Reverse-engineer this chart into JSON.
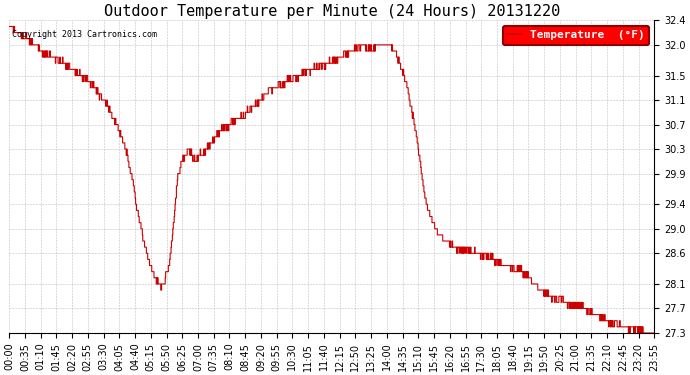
{
  "title": "Outdoor Temperature per Minute (24 Hours) 20131220",
  "copyright": "Copyright 2013 Cartronics.com",
  "legend_label": "Temperature  (°F)",
  "line_color": "#cc0000",
  "background_color": "#ffffff",
  "plot_background": "#ffffff",
  "grid_color": "#b0b0b0",
  "ylim": [
    27.3,
    32.4
  ],
  "yticks": [
    27.3,
    27.7,
    28.1,
    28.6,
    29.0,
    29.4,
    29.9,
    30.3,
    30.7,
    31.1,
    31.5,
    32.0,
    32.4
  ],
  "xtick_labels": [
    "00:00",
    "00:35",
    "01:10",
    "01:45",
    "02:20",
    "02:55",
    "03:30",
    "04:05",
    "04:40",
    "05:15",
    "05:50",
    "06:25",
    "07:00",
    "07:35",
    "08:10",
    "08:45",
    "09:20",
    "09:55",
    "10:30",
    "11:05",
    "11:40",
    "12:15",
    "12:50",
    "13:25",
    "14:00",
    "14:35",
    "15:10",
    "15:45",
    "16:20",
    "16:55",
    "17:30",
    "18:05",
    "18:40",
    "19:15",
    "19:50",
    "20:25",
    "21:00",
    "21:35",
    "22:10",
    "22:45",
    "23:20",
    "23:55"
  ],
  "control_points": [
    [
      0,
      32.3
    ],
    [
      20,
      32.2
    ],
    [
      40,
      32.1
    ],
    [
      55,
      32.0
    ],
    [
      70,
      31.9
    ],
    [
      85,
      31.85
    ],
    [
      100,
      31.8
    ],
    [
      120,
      31.7
    ],
    [
      140,
      31.6
    ],
    [
      160,
      31.5
    ],
    [
      185,
      31.35
    ],
    [
      200,
      31.2
    ],
    [
      220,
      31.0
    ],
    [
      240,
      30.7
    ],
    [
      260,
      30.3
    ],
    [
      275,
      29.8
    ],
    [
      285,
      29.3
    ],
    [
      300,
      28.8
    ],
    [
      315,
      28.4
    ],
    [
      325,
      28.2
    ],
    [
      332,
      28.1
    ],
    [
      338,
      28.05
    ],
    [
      345,
      28.1
    ],
    [
      358,
      28.5
    ],
    [
      368,
      29.2
    ],
    [
      375,
      29.8
    ],
    [
      385,
      30.1
    ],
    [
      392,
      30.2
    ],
    [
      398,
      30.3
    ],
    [
      405,
      30.25
    ],
    [
      412,
      30.15
    ],
    [
      418,
      30.1
    ],
    [
      425,
      30.2
    ],
    [
      432,
      30.25
    ],
    [
      440,
      30.3
    ],
    [
      450,
      30.4
    ],
    [
      460,
      30.5
    ],
    [
      470,
      30.6
    ],
    [
      485,
      30.65
    ],
    [
      500,
      30.75
    ],
    [
      515,
      30.8
    ],
    [
      530,
      30.9
    ],
    [
      545,
      31.0
    ],
    [
      560,
      31.1
    ],
    [
      575,
      31.2
    ],
    [
      590,
      31.3
    ],
    [
      605,
      31.35
    ],
    [
      618,
      31.4
    ],
    [
      630,
      31.45
    ],
    [
      645,
      31.5
    ],
    [
      658,
      31.55
    ],
    [
      672,
      31.6
    ],
    [
      690,
      31.65
    ],
    [
      710,
      31.7
    ],
    [
      725,
      31.75
    ],
    [
      740,
      31.8
    ],
    [
      755,
      31.85
    ],
    [
      768,
      31.9
    ],
    [
      778,
      31.95
    ],
    [
      788,
      32.0
    ],
    [
      800,
      31.95
    ],
    [
      810,
      31.9
    ],
    [
      818,
      32.0
    ],
    [
      828,
      32.0
    ],
    [
      838,
      32.0
    ],
    [
      848,
      32.0
    ],
    [
      858,
      31.9
    ],
    [
      865,
      31.8
    ],
    [
      872,
      31.7
    ],
    [
      880,
      31.5
    ],
    [
      888,
      31.3
    ],
    [
      896,
      31.0
    ],
    [
      904,
      30.7
    ],
    [
      912,
      30.3
    ],
    [
      920,
      29.9
    ],
    [
      928,
      29.5
    ],
    [
      936,
      29.3
    ],
    [
      944,
      29.1
    ],
    [
      952,
      29.0
    ],
    [
      960,
      28.9
    ],
    [
      975,
      28.8
    ],
    [
      995,
      28.7
    ],
    [
      1020,
      28.65
    ],
    [
      1050,
      28.6
    ],
    [
      1080,
      28.5
    ],
    [
      1110,
      28.4
    ],
    [
      1130,
      28.35
    ],
    [
      1145,
      28.3
    ],
    [
      1160,
      28.2
    ],
    [
      1175,
      28.1
    ],
    [
      1190,
      28.0
    ],
    [
      1205,
      27.9
    ],
    [
      1220,
      27.85
    ],
    [
      1240,
      27.8
    ],
    [
      1265,
      27.75
    ],
    [
      1295,
      27.65
    ],
    [
      1320,
      27.55
    ],
    [
      1345,
      27.45
    ],
    [
      1370,
      27.4
    ],
    [
      1400,
      27.35
    ],
    [
      1420,
      27.32
    ],
    [
      1439,
      27.3
    ]
  ],
  "title_fontsize": 11,
  "axis_fontsize": 7,
  "legend_fontsize": 8,
  "figwidth": 6.9,
  "figheight": 3.75,
  "dpi": 100
}
